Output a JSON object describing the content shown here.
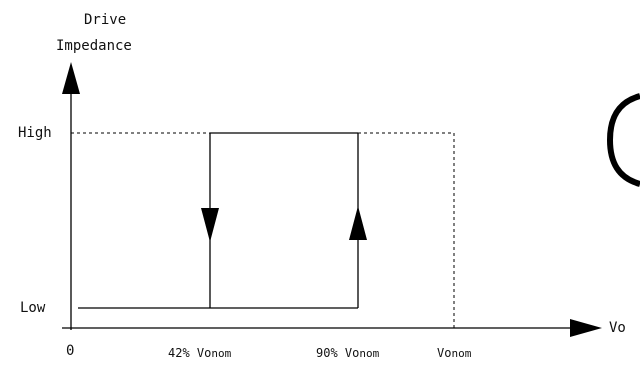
{
  "diagram": {
    "y_axis_label_line1": "Drive",
    "y_axis_label_line2": "Impedance",
    "x_axis_label": "Vo",
    "level_high": "High",
    "level_low": "Low",
    "tick_zero": "0",
    "tick_42_prefix": "42% ",
    "tick_42_main": "Vo",
    "tick_42_sub": "nom",
    "tick_90_prefix": "90% ",
    "tick_90_main": "Vo",
    "tick_90_sub": "nom",
    "tick_vonom_main": "Vo",
    "tick_vonom_sub": "nom",
    "colors": {
      "line": "#000000",
      "text": "#111111",
      "background": "#ffffff"
    }
  }
}
